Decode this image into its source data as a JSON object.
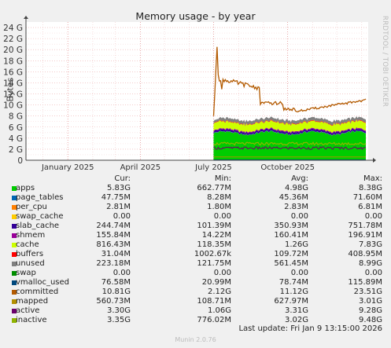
{
  "title": "Memory usage - by year",
  "side_label": "RRDTOOL / TOBI OETIKER",
  "footer": "Munin 2.0.76",
  "last_update": "Last update:  Fri Jan  9 13:15:00 2026",
  "legend_headers": [
    "Cur:",
    "Min:",
    "Avg:",
    "Max:"
  ],
  "chart_data": {
    "type": "area",
    "title": "Memory usage - by year",
    "ylabel": "Bytes",
    "ylim": [
      0,
      25
    ],
    "yunit": "G",
    "yticks": [
      "0",
      "2 G",
      "4 G",
      "6 G",
      "8 G",
      "10 G",
      "12 G",
      "14 G",
      "16 G",
      "18 G",
      "20 G",
      "22 G",
      "24 G"
    ],
    "xticks": [
      "January 2025",
      "April 2025",
      "July 2025",
      "October 2025"
    ],
    "x_range": [
      "2024-11-10",
      "2026-01-09"
    ],
    "data_start": "2025-07-01",
    "grid": true,
    "stacked_series": [
      "apps",
      "page_tables",
      "per_cpu",
      "swap_cache",
      "slab_cache",
      "shmem",
      "cache",
      "buffers",
      "unused",
      "swap"
    ],
    "line_series": [
      "vmalloc_used",
      "committed",
      "mapped",
      "active",
      "inactive"
    ],
    "series": [
      {
        "name": "apps",
        "color": "#00cc00",
        "cur": "5.83G",
        "min": "662.77M",
        "avg": "4.98G",
        "max": "8.38G"
      },
      {
        "name": "page_tables",
        "color": "#0066b3",
        "cur": "47.75M",
        "min": "8.28M",
        "avg": "45.36M",
        "max": "71.60M"
      },
      {
        "name": "per_cpu",
        "color": "#ff8000",
        "cur": "2.81M",
        "min": "1.80M",
        "avg": "2.83M",
        "max": "6.81M"
      },
      {
        "name": "swap_cache",
        "color": "#ffcc00",
        "cur": "0.00",
        "min": "0.00",
        "avg": "0.00",
        "max": "0.00"
      },
      {
        "name": "slab_cache",
        "color": "#330099",
        "cur": "244.74M",
        "min": "101.39M",
        "avg": "350.93M",
        "max": "751.78M"
      },
      {
        "name": "shmem",
        "color": "#990099",
        "cur": "155.84M",
        "min": "14.22M",
        "avg": "160.41M",
        "max": "196.91M"
      },
      {
        "name": "cache",
        "color": "#ccff00",
        "cur": "816.43M",
        "min": "118.35M",
        "avg": "1.26G",
        "max": "7.83G"
      },
      {
        "name": "buffers",
        "color": "#ff0000",
        "cur": "31.04M",
        "min": "1002.67k",
        "avg": "109.72M",
        "max": "408.95M"
      },
      {
        "name": "unused",
        "color": "#808080",
        "cur": "223.18M",
        "min": "121.75M",
        "avg": "561.45M",
        "max": "8.99G"
      },
      {
        "name": "swap",
        "color": "#008f00",
        "cur": "0.00",
        "min": "0.00",
        "avg": "0.00",
        "max": "0.00"
      },
      {
        "name": "vmalloc_used",
        "color": "#00487d",
        "cur": "76.58M",
        "min": "20.99M",
        "avg": "78.74M",
        "max": "115.89M"
      },
      {
        "name": "committed",
        "color": "#b35a00",
        "cur": "10.81G",
        "min": "2.12G",
        "avg": "11.12G",
        "max": "23.51G"
      },
      {
        "name": "mapped",
        "color": "#b38f00",
        "cur": "560.73M",
        "min": "108.71M",
        "avg": "627.97M",
        "max": "3.01G"
      },
      {
        "name": "active",
        "color": "#6b006b",
        "cur": "3.30G",
        "min": "1.06G",
        "avg": "3.31G",
        "max": "9.28G"
      },
      {
        "name": "inactive",
        "color": "#8fb300",
        "cur": "3.35G",
        "min": "776.02M",
        "avg": "3.02G",
        "max": "9.48G"
      }
    ]
  }
}
